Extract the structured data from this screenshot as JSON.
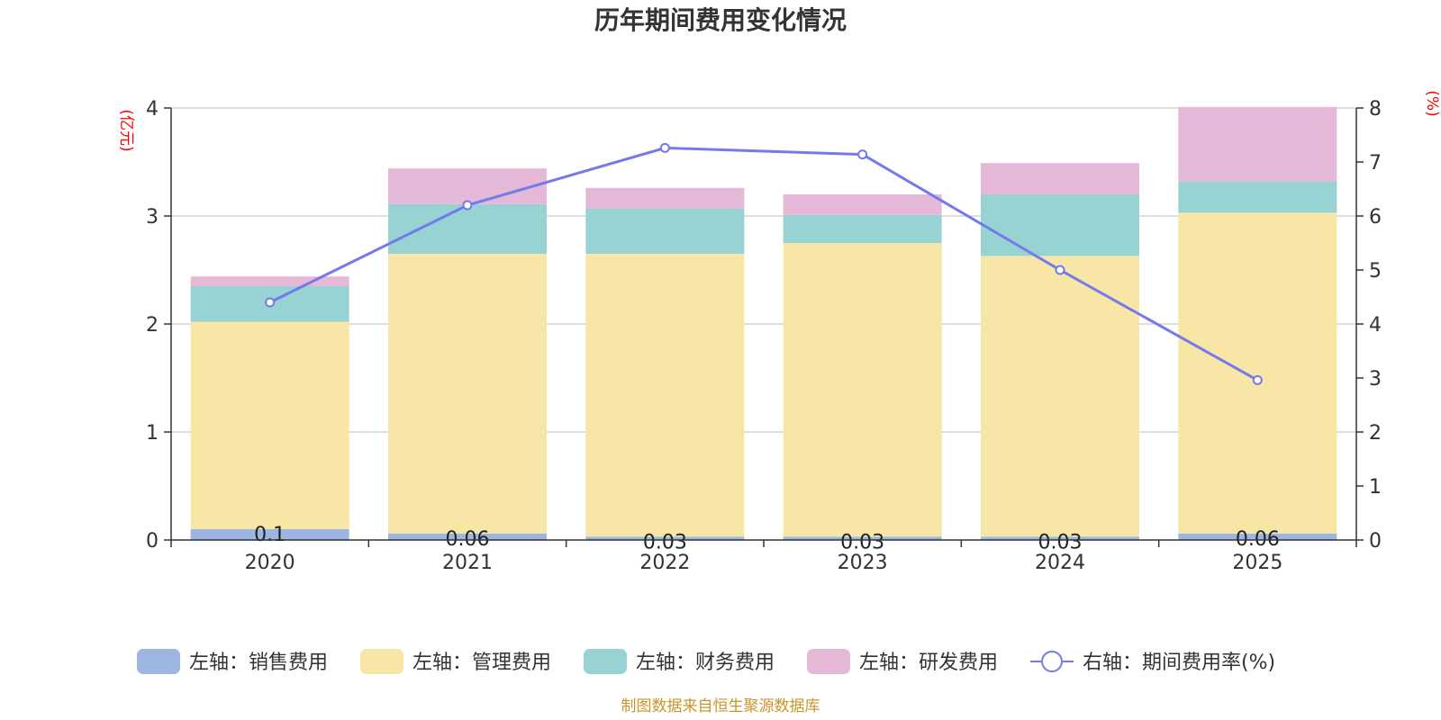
{
  "chart_data": {
    "type": "bar",
    "stacked": true,
    "title": "历年期间费用变化情况",
    "categories": [
      "2020",
      "2021",
      "2022",
      "2023",
      "2024",
      "2025"
    ],
    "left_axis": {
      "unit": "(亿元)",
      "range": [
        0,
        4
      ],
      "ticks": [
        "0",
        "1",
        "2",
        "3",
        "4"
      ]
    },
    "right_axis": {
      "unit": "(%)",
      "range": [
        0,
        8
      ],
      "ticks": [
        "0",
        "1",
        "2",
        "3",
        "4",
        "5",
        "6",
        "7",
        "8"
      ]
    },
    "series": [
      {
        "name": "左轴：销售费用",
        "color": "#9db5e1",
        "values": [
          0.1,
          0.06,
          0.03,
          0.03,
          0.03,
          0.06
        ],
        "labels": [
          "0.1",
          "0.06",
          "0.03",
          "0.03",
          "0.03",
          "0.06"
        ]
      },
      {
        "name": "左轴：管理费用",
        "color": "#f7e6a6",
        "values": [
          1.92,
          2.59,
          2.62,
          2.72,
          2.6,
          2.97
        ]
      },
      {
        "name": "左轴：财务费用",
        "color": "#97d3d3",
        "values": [
          0.33,
          0.46,
          0.42,
          0.26,
          0.57,
          0.29
        ]
      },
      {
        "name": "左轴：研发费用",
        "color": "#e6b8d8",
        "values": [
          0.09,
          0.33,
          0.19,
          0.19,
          0.29,
          0.69
        ]
      }
    ],
    "line": {
      "name": "右轴：期间费用率(%)",
      "color": "#7479ec",
      "values": [
        4.4,
        6.2,
        7.26,
        7.14,
        5.0,
        2.96
      ]
    },
    "source": "制图数据来自恒生聚源数据库"
  }
}
